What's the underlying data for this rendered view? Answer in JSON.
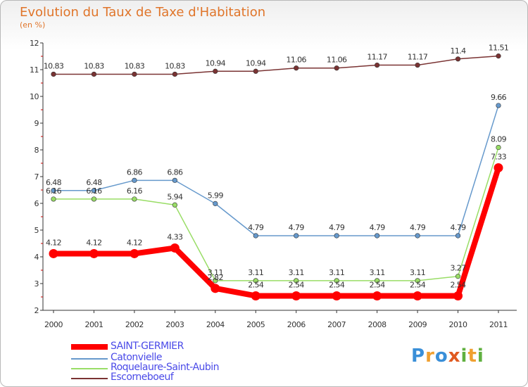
{
  "title": "Evolution du Taux de Taxe d'Habitation",
  "subtitle": "(en %)",
  "chart_data": {
    "type": "line",
    "title": "Evolution du Taux de Taxe d'Habitation",
    "ylabel": "(en %)",
    "xlabel": "",
    "ylim": [
      2,
      12
    ],
    "yticks": [
      "2",
      "3",
      "4",
      "5",
      "6",
      "7",
      "8",
      "9",
      "10",
      "11",
      "12"
    ],
    "categories": [
      "2000",
      "2001",
      "2002",
      "2003",
      "2004",
      "2005",
      "2006",
      "2007",
      "2008",
      "2009",
      "2010",
      "2011"
    ],
    "series": [
      {
        "name": "SAINT-GERMIER",
        "color": "#ff0000",
        "values": [
          4.12,
          4.12,
          4.12,
          4.33,
          2.82,
          2.54,
          2.54,
          2.54,
          2.54,
          2.54,
          2.54,
          7.33
        ],
        "labels": [
          "4.12",
          "4.12",
          "4.12",
          "4.33",
          "2.82",
          "2.54",
          "2.54",
          "2.54",
          "2.54",
          "2.54",
          "2.54",
          "7.33"
        ]
      },
      {
        "name": "Catonvielle",
        "color": "#6699cc",
        "values": [
          6.48,
          6.48,
          6.86,
          6.86,
          5.99,
          4.79,
          4.79,
          4.79,
          4.79,
          4.79,
          4.79,
          9.66
        ],
        "labels": [
          "6.48",
          "6.48",
          "6.86",
          "6.86",
          "5.99",
          "4.79",
          "4.79",
          "4.79",
          "4.79",
          "4.79",
          "4.79",
          "9.66"
        ]
      },
      {
        "name": "Roquelaure-Saint-Aubin",
        "color": "#99dd66",
        "values": [
          6.16,
          6.16,
          6.16,
          5.94,
          3.11,
          3.11,
          3.11,
          3.11,
          3.11,
          3.11,
          3.27,
          8.09
        ],
        "labels": [
          "6.16",
          "6.16",
          "6.16",
          "5.94",
          "3.11",
          "3.11",
          "3.11",
          "3.11",
          "3.11",
          "3.11",
          "3.27",
          "8.09"
        ]
      },
      {
        "name": "Escorneboeuf",
        "color": "#7a3333",
        "values": [
          10.83,
          10.83,
          10.83,
          10.83,
          10.94,
          10.94,
          11.06,
          11.06,
          11.17,
          11.17,
          11.4,
          11.51
        ],
        "labels": [
          "10.83",
          "10.83",
          "10.83",
          "10.83",
          "10.94",
          "10.94",
          "11.06",
          "11.06",
          "11.17",
          "11.17",
          "11.4",
          "11.51"
        ]
      }
    ],
    "grid": false,
    "legend": "bottom-left"
  },
  "legend": [
    {
      "label": "SAINT-GERMIER",
      "color": "#ff0000"
    },
    {
      "label": "Catonvielle",
      "color": "#6699cc"
    },
    {
      "label": "Roquelaure-Saint-Aubin",
      "color": "#99dd66"
    },
    {
      "label": "Escorneboeuf",
      "color": "#7a3333"
    }
  ],
  "logo": {
    "letters": [
      "P",
      "r",
      "o",
      "x",
      "i",
      "t",
      "i"
    ],
    "colors": [
      "#3a8fd8",
      "#f0a030",
      "#3a8fd8",
      "#e05a20",
      "#60b040",
      "#f0a030",
      "#60b040"
    ]
  }
}
